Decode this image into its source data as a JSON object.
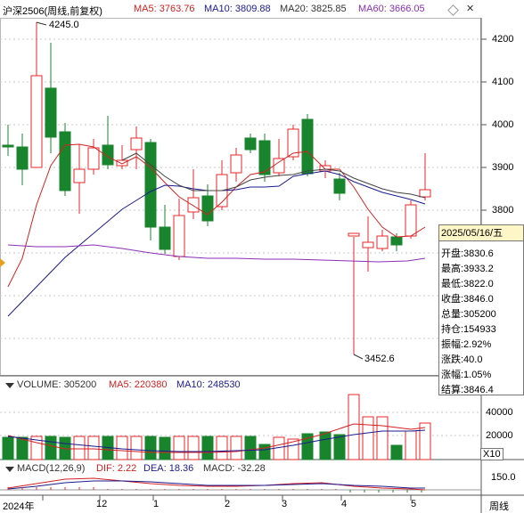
{
  "header": {
    "title": "沪深2506(周线,前复权)",
    "ma5": "MA5: 3763.76",
    "ma10": "MA10: 3809.88",
    "ma20": "MA20: 3825.85",
    "ma60": "MA60: 3666.05"
  },
  "price_axis": [
    "4200",
    "4100",
    "4000",
    "3900",
    "3800"
  ],
  "annotations": {
    "high": "4245.0",
    "low": "3452.6"
  },
  "info": {
    "date": "2025/05/16/五",
    "rows": [
      "开盘:3830.6",
      "最高:3933.2",
      "最低:3822.0",
      "收盘:3846.0",
      "总量:305200",
      "持仓:154933",
      "振幅:2.92%",
      "涨跌:40.0",
      "涨幅:1.05%",
      "结算:3846.4"
    ]
  },
  "volume": {
    "label": "VOLUME: 305200",
    "ma5": "MA5: 220380",
    "ma10": "MA10: 248530",
    "axis": [
      "40000",
      "20000"
    ],
    "unit": "X10"
  },
  "macd": {
    "label": "MACD(12,26,9)",
    "dif": "DIF: 2.22",
    "dea": "DEA: 18.36",
    "macd": "MACD: -32.28",
    "axis": "150.0"
  },
  "x_axis": {
    "labels": [
      "2024年",
      "12",
      "1",
      "2",
      "3",
      "4",
      "5"
    ],
    "period": "周线"
  },
  "colors": {
    "up": "#e8262a",
    "down": "#18842c",
    "ma5": "#d42121",
    "ma10": "#1b1b90",
    "ma20": "#444444",
    "ma60": "#8a2fb4"
  }
}
